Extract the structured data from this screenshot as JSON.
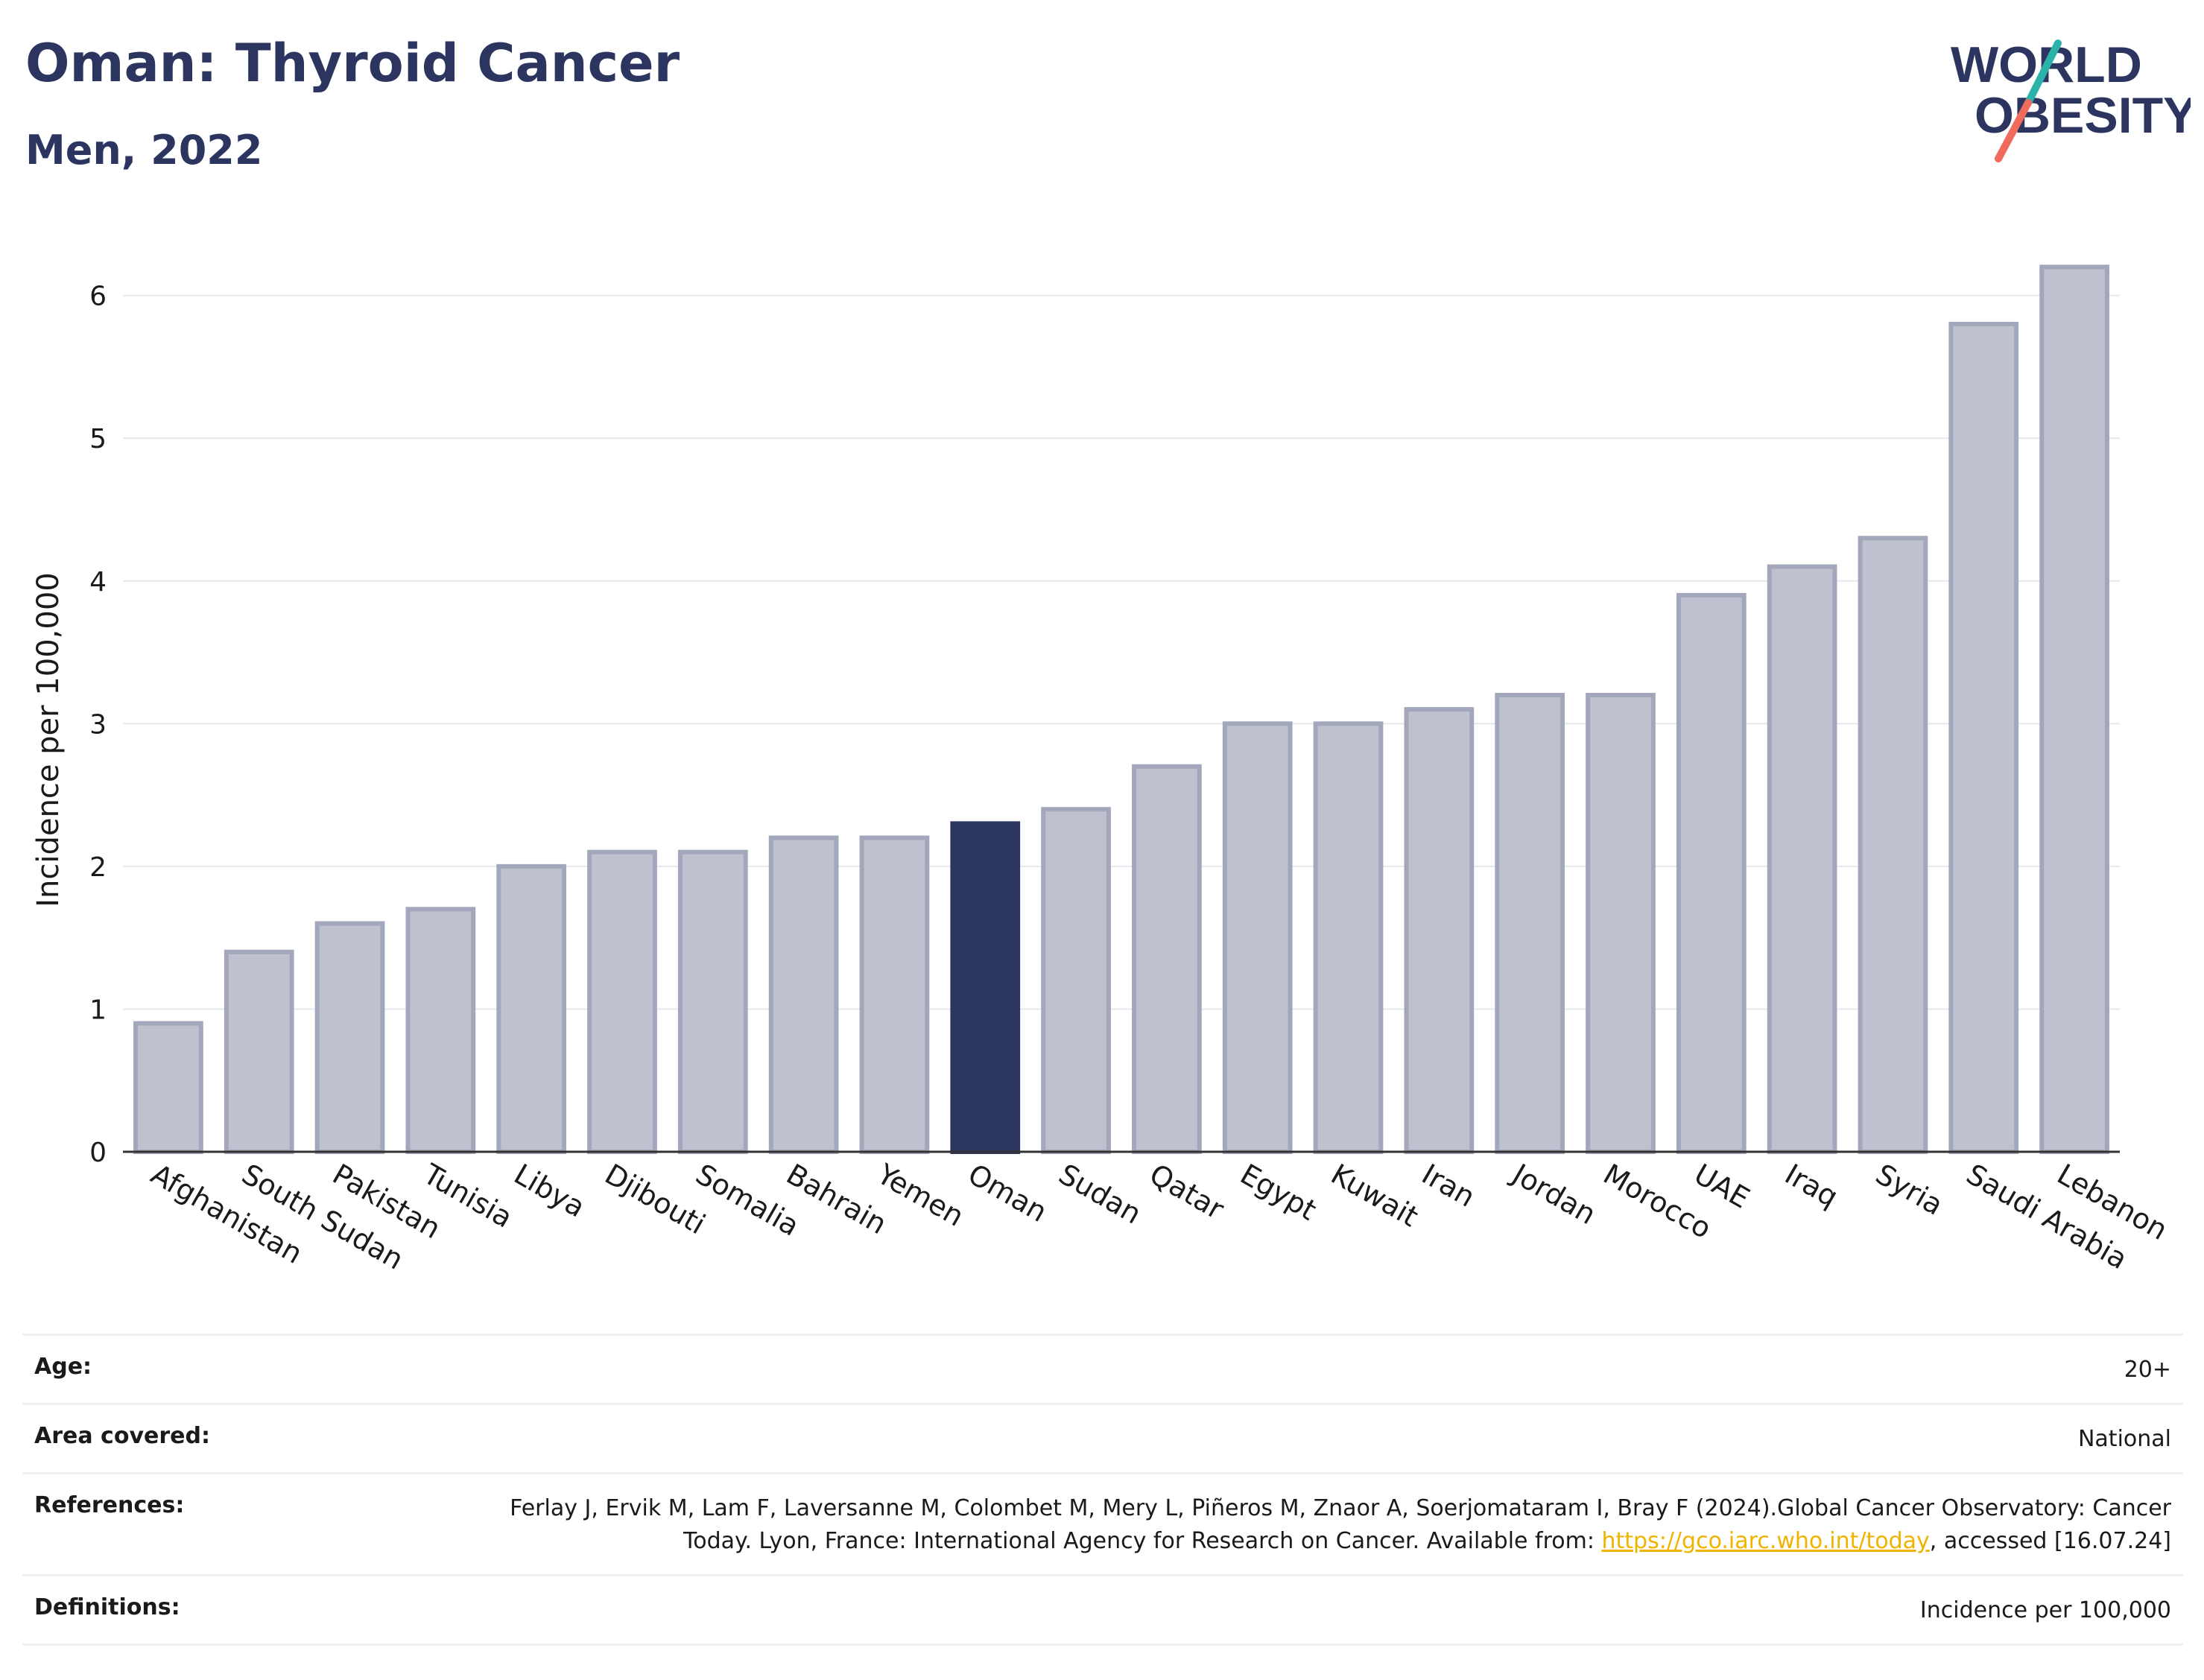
{
  "header": {
    "title": "Oman: Thyroid Cancer",
    "subtitle": "Men, 2022"
  },
  "logo": {
    "line1": "WORLD",
    "line2": "OBESITY",
    "accent_teal": "#2bb3aa",
    "accent_coral": "#f06b5b",
    "text_color": "#2b3560"
  },
  "chart_data": {
    "type": "bar",
    "ylabel": "Incidence per 100,000",
    "xlabel": "",
    "ylim": [
      0,
      6.4
    ],
    "yticks": [
      0,
      1,
      2,
      3,
      4,
      5,
      6
    ],
    "grid": true,
    "highlight": "Oman",
    "highlight_color": "#2b3560",
    "bar_color": "#bfc2ce",
    "bar_edge_color": "#a2a7bb",
    "categories": [
      "Afghanistan",
      "South Sudan",
      "Pakistan",
      "Tunisia",
      "Libya",
      "Djibouti",
      "Somalia",
      "Bahrain",
      "Yemen",
      "Oman",
      "Sudan",
      "Qatar",
      "Egypt",
      "Kuwait",
      "Iran",
      "Jordan",
      "Morocco",
      "UAE",
      "Iraq",
      "Syria",
      "Saudi Arabia",
      "Lebanon"
    ],
    "values": [
      0.9,
      1.4,
      1.6,
      1.7,
      2.0,
      2.1,
      2.1,
      2.2,
      2.2,
      2.3,
      2.4,
      2.7,
      3.0,
      3.0,
      3.1,
      3.2,
      3.2,
      3.9,
      4.1,
      4.3,
      5.8,
      6.2
    ]
  },
  "info": {
    "age_label": "Age:",
    "age_value": "20+",
    "area_label": "Area covered:",
    "area_value": "National",
    "ref_label": "References:",
    "ref_text_1": "Ferlay J, Ervik M, Lam F, Laversanne M, Colombet M, Mery L, Piñeros M, Znaor A, Soerjomataram I, Bray F (2024).Global Cancer Observatory: Cancer Today. Lyon, France: International Agency for Research on Cancer. Available from: ",
    "ref_link": "https://gco.iarc.who.int/today",
    "ref_text_2": ", accessed [16.07.24]",
    "def_label": "Definitions:",
    "def_value": "Incidence per 100,000"
  }
}
